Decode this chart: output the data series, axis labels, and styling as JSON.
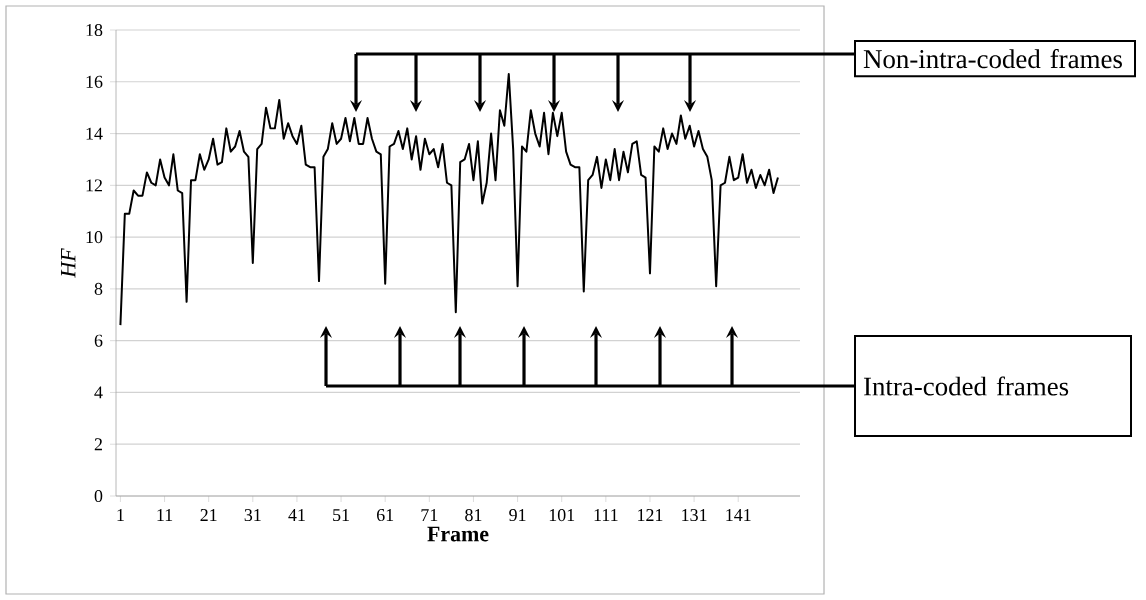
{
  "chart_data": {
    "type": "line",
    "xlabel": "Frame",
    "ylabel": "HF",
    "x": [
      1,
      2,
      3,
      4,
      5,
      6,
      7,
      8,
      9,
      10,
      11,
      12,
      13,
      14,
      15,
      16,
      17,
      18,
      19,
      20,
      21,
      22,
      23,
      24,
      25,
      26,
      27,
      28,
      29,
      30,
      31,
      32,
      33,
      34,
      35,
      36,
      37,
      38,
      39,
      40,
      41,
      42,
      43,
      44,
      45,
      46,
      47,
      48,
      49,
      50,
      51,
      52,
      53,
      54,
      55,
      56,
      57,
      58,
      59,
      60,
      61,
      62,
      63,
      64,
      65,
      66,
      67,
      68,
      69,
      70,
      71,
      72,
      73,
      74,
      75,
      76,
      77,
      78,
      79,
      80,
      81,
      82,
      83,
      84,
      85,
      86,
      87,
      88,
      89,
      90,
      91,
      92,
      93,
      94,
      95,
      96,
      97,
      98,
      99,
      100,
      101,
      102,
      103,
      104,
      105,
      106,
      107,
      108,
      109,
      110,
      111,
      112,
      113,
      114,
      115,
      116,
      117,
      118,
      119,
      120,
      121,
      122,
      123,
      124,
      125,
      126,
      127,
      128,
      129,
      130,
      131,
      132,
      133,
      134,
      135,
      136,
      137,
      138,
      139,
      140,
      141,
      142,
      143,
      144,
      145,
      146,
      147,
      148,
      149,
      150
    ],
    "series": [
      {
        "color": "#000000",
        "values": [
          6.6,
          10.9,
          10.9,
          11.8,
          11.6,
          11.6,
          12.5,
          12.1,
          12.0,
          13.0,
          12.3,
          12.0,
          13.2,
          11.8,
          11.7,
          7.5,
          12.2,
          12.2,
          13.2,
          12.6,
          13.0,
          13.8,
          12.8,
          12.9,
          14.2,
          13.3,
          13.5,
          14.1,
          13.3,
          13.1,
          9.0,
          13.4,
          13.6,
          15.0,
          14.2,
          14.2,
          15.3,
          13.8,
          14.4,
          13.9,
          13.6,
          14.3,
          12.8,
          12.7,
          12.7,
          8.3,
          13.1,
          13.4,
          14.4,
          13.6,
          13.8,
          14.6,
          13.7,
          14.6,
          13.6,
          13.6,
          14.6,
          13.8,
          13.3,
          13.2,
          8.2,
          13.5,
          13.6,
          14.1,
          13.4,
          14.2,
          13.0,
          13.9,
          12.6,
          13.8,
          13.2,
          13.4,
          12.7,
          13.6,
          12.1,
          12.0,
          7.1,
          12.9,
          13.0,
          13.6,
          12.2,
          13.7,
          11.3,
          12.1,
          14.0,
          12.2,
          14.9,
          14.3,
          16.3,
          13.4,
          8.1,
          13.5,
          13.3,
          14.9,
          14.0,
          13.5,
          14.8,
          13.2,
          14.8,
          13.9,
          14.8,
          13.3,
          12.8,
          12.7,
          12.7,
          7.9,
          12.2,
          12.4,
          13.1,
          11.9,
          13.0,
          12.2,
          13.4,
          12.2,
          13.3,
          12.5,
          13.6,
          13.7,
          12.4,
          12.3,
          8.6,
          13.5,
          13.3,
          14.2,
          13.4,
          14.0,
          13.6,
          14.7,
          13.8,
          14.3,
          13.5,
          14.1,
          13.4,
          13.1,
          12.2,
          8.1,
          12.0,
          12.1,
          13.1,
          12.2,
          12.3,
          13.2,
          12.1,
          12.6,
          11.9,
          12.4,
          12.0,
          12.6,
          11.7,
          12.3
        ]
      }
    ],
    "xlim": [
      0,
      155
    ],
    "ylim": [
      0,
      18
    ],
    "xticks": [
      1,
      11,
      21,
      31,
      41,
      51,
      61,
      71,
      81,
      91,
      101,
      111,
      121,
      131,
      141
    ],
    "yticks": [
      0,
      2,
      4,
      6,
      8,
      10,
      12,
      14,
      16,
      18
    ],
    "grid": "y",
    "marker": "none",
    "line_style": "solid",
    "annotations": [
      "Non-intra-coded frames",
      "Intra-coded frames"
    ]
  }
}
